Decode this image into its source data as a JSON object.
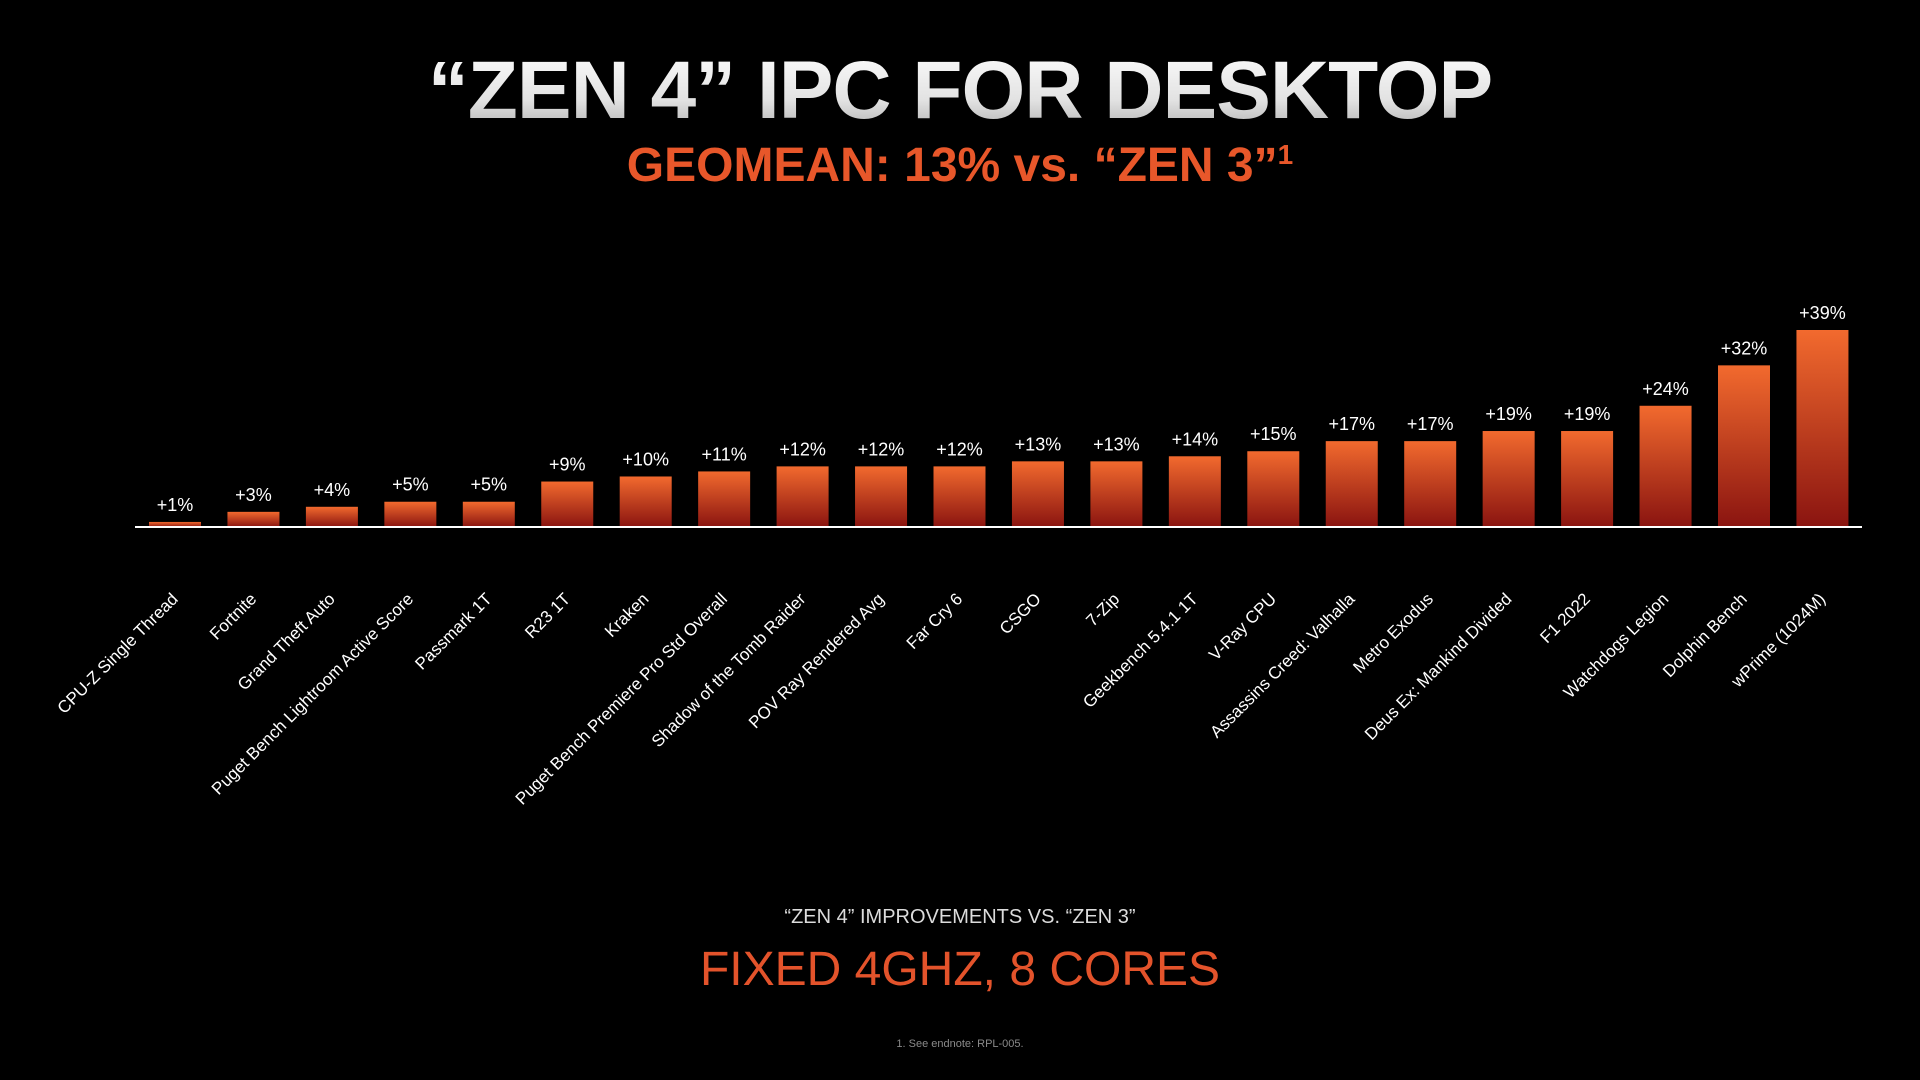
{
  "title": "“ZEN 4” IPC FOR DESKTOP",
  "subtitle": "GEOMEAN: 13% vs. “ZEN 3”",
  "subtitle_sup": "1",
  "caption": "“ZEN 4” IMPROVEMENTS VS. “ZEN 3”",
  "headline": "FIXED 4GHZ, 8 CORES",
  "footnote": "1. See endnote: RPL-005.",
  "colors": {
    "bar_top": "#f26a2e",
    "bar_bottom": "#8a1410",
    "accent": "#e3532b",
    "background": "#000000"
  },
  "chart_data": {
    "type": "bar",
    "categories": [
      "CPU-Z Single Thread",
      "Fortnite",
      "Grand Theft Auto",
      "Puget Bench Lightroom Active Score",
      "Passmark 1T",
      "R23 1T",
      "Kraken",
      "Puget Bench Premiere Pro Std Overall",
      "Shadow of the Tomb Raider",
      "POV Ray Rendered Avg",
      "Far Cry 6",
      "CSGO",
      "7-Zip",
      "Geekbench 5.4.1 1T",
      "V-Ray CPU",
      "Assassins Creed: Valhalla",
      "Metro Exodus",
      "Deus Ex: Mankind Divided",
      "F1 2022",
      "Watchdogs Legion",
      "Dolphin Bench",
      "wPrime (1024M)"
    ],
    "values": [
      1,
      3,
      4,
      5,
      5,
      9,
      10,
      11,
      12,
      12,
      12,
      13,
      13,
      14,
      15,
      17,
      17,
      19,
      19,
      24,
      32,
      39
    ],
    "data_labels": [
      "+1%",
      "+3%",
      "+4%",
      "+5%",
      "+5%",
      "+9%",
      "+10%",
      "+11%",
      "+12%",
      "+12%",
      "+12%",
      "+13%",
      "+13%",
      "+14%",
      "+15%",
      "+17%",
      "+17%",
      "+19%",
      "+19%",
      "+24%",
      "+32%",
      "+39%"
    ],
    "title": "",
    "xlabel": "",
    "ylabel": "",
    "ylim": [
      0,
      39
    ],
    "grid": false,
    "legend": "none"
  }
}
